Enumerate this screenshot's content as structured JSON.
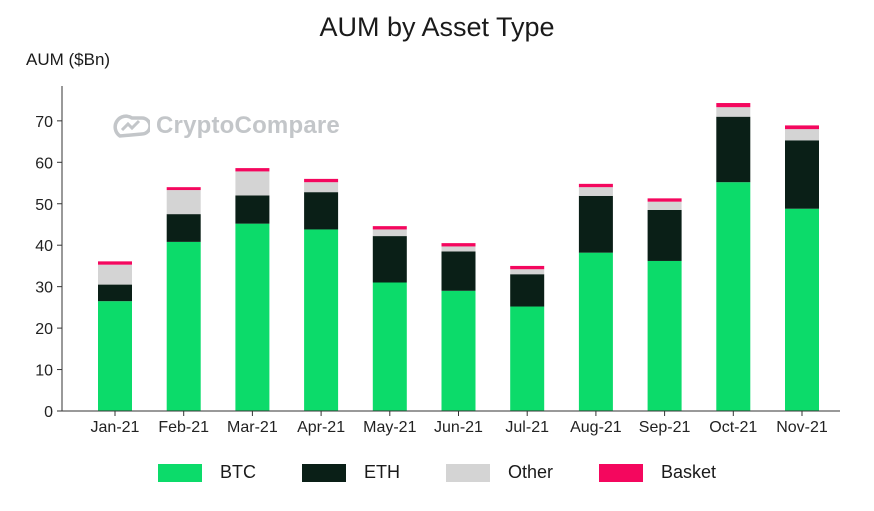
{
  "chart_data": {
    "type": "bar",
    "stacked": true,
    "title": "AUM by Asset Type",
    "ylabel": "AUM ($Bn)",
    "xlabel": "",
    "ylim": [
      0,
      80
    ],
    "yticks": [
      0,
      10,
      20,
      30,
      40,
      50,
      60,
      70
    ],
    "grid": false,
    "legend_position": "bottom",
    "watermark": "CryptoCompare",
    "categories": [
      "Jan-21",
      "Feb-21",
      "Mar-21",
      "Apr-21",
      "May-21",
      "Jun-21",
      "Jul-21",
      "Aug-21",
      "Sep-21",
      "Oct-21",
      "Nov-21"
    ],
    "series": [
      {
        "name": "BTC",
        "color": "#0cdb6a",
        "values": [
          26.5,
          40.8,
          45.2,
          43.8,
          31.0,
          29.0,
          25.2,
          38.2,
          36.2,
          55.2,
          48.8
        ]
      },
      {
        "name": "ETH",
        "color": "#0a1f17",
        "values": [
          4.0,
          6.7,
          6.8,
          9.0,
          11.2,
          9.5,
          7.8,
          13.7,
          12.3,
          15.8,
          16.5
        ]
      },
      {
        "name": "Other",
        "color": "#d4d4d4",
        "values": [
          4.8,
          5.8,
          5.8,
          2.4,
          1.6,
          1.2,
          1.2,
          2.1,
          2.0,
          2.3,
          2.7
        ]
      },
      {
        "name": "Basket",
        "color": "#f4075e",
        "values": [
          0.8,
          0.7,
          0.8,
          0.8,
          0.8,
          0.8,
          0.8,
          0.8,
          0.8,
          1.0,
          0.9
        ]
      }
    ]
  }
}
